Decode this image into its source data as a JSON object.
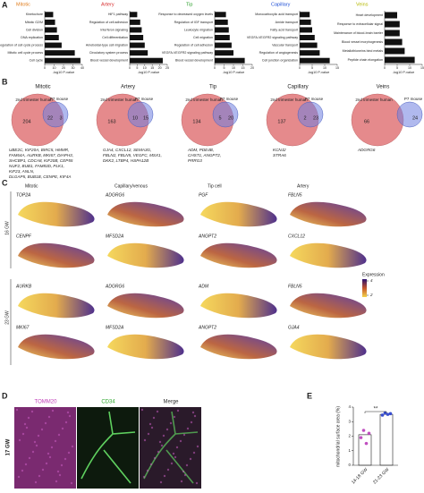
{
  "panel_a": {
    "label": "A",
    "xlabel": "-log10 P-value",
    "charts": [
      {
        "title": "Mitotic",
        "title_color": "#e07b1a",
        "bar_color": "#111111",
        "categories": [
          "Kinetochore",
          "Mitotic G2/M",
          "Cell division",
          "DNA replication",
          "Regulation of cell cycle process",
          "Mitotic cell cycle process",
          "Cell cycle"
        ],
        "values": [
          9,
          11,
          13,
          15,
          18,
          32,
          38
        ],
        "xlim": [
          0,
          40
        ],
        "xticks": [
          0,
          10,
          20,
          30,
          40
        ]
      },
      {
        "title": "Artery",
        "title_color": "#d62728",
        "bar_color": "#111111",
        "categories": [
          "HIF1 pathway",
          "Regulation of cell adhesion",
          "Interferon signaling",
          "Cell differentiation",
          "Ameboidal-type cell migration",
          "Circulatory system process",
          "Blood vessel development"
        ],
        "values": [
          5,
          7,
          8,
          9,
          10,
          12,
          22
        ],
        "xlim": [
          0,
          25
        ],
        "xticks": [
          0,
          5,
          10,
          15,
          20,
          25
        ]
      },
      {
        "title": "Tip",
        "title_color": "#2ca02c",
        "bar_color": "#111111",
        "categories": [
          "Response to decreased oxygen levels",
          "Regulation of IGF transport",
          "Leukocyte migration",
          "Cell migration",
          "Regulation of cell adhesion",
          "VEGFA-VEGFR2 signaling pathway",
          "Blood vessel development"
        ],
        "values": [
          6,
          7,
          7.5,
          8,
          9,
          10,
          16
        ],
        "xlim": [
          0,
          20
        ],
        "xticks": [
          0,
          5,
          10,
          15,
          20
        ]
      },
      {
        "title": "Capillary",
        "title_color": "#1f4fd6",
        "bar_color": "#111111",
        "categories": [
          "Monocarboxylic acid transport",
          "Amide transport",
          "Fatty acid transport",
          "VEGFA-VEGFR2 signaling pathway",
          "Vascular transport",
          "Regulation of angiogenesis",
          "Cell junction organization"
        ],
        "values": [
          4,
          4.5,
          5,
          6,
          7,
          8,
          12
        ],
        "xlim": [
          0,
          15
        ],
        "xticks": [
          0,
          5,
          10,
          15
        ]
      },
      {
        "title": "Veins",
        "title_color": "#b5b800",
        "bar_color": "#111111",
        "categories": [
          "Heart development",
          "Response to extracellular signal",
          "Maintenance of blood-brain barrier",
          "Blood vessel morphogenesis",
          "Metallothioneins bind metals",
          "Peptide chain elongation"
        ],
        "values": [
          5,
          6,
          6,
          7,
          8,
          12
        ],
        "xlim": [
          0,
          15
        ],
        "xticks": [
          0,
          5,
          10,
          15
        ]
      }
    ]
  },
  "panel_b": {
    "label": "B",
    "left_set": "2nd trimester human",
    "right_set": "P7 mouse",
    "venns": [
      {
        "title": "Mitotic",
        "left": 204,
        "overlap": 22,
        "right": 3,
        "genes": [
          "UBE2C, KIF20A, BIRC5, HMMR,",
          "FAM64A, AURKB, MKI67, DIAPH3,",
          "SHCBP1, CDCA8, KIF20B, CEP55",
          "NUF2, BUB1, FAM83D, PLK1,",
          "KIF23, ANLN,",
          "DLGAP5, BUB1B, CENPE, KIF4A"
        ]
      },
      {
        "title": "Artery",
        "left": 163,
        "overlap": 10,
        "right": 15,
        "genes": [
          "GJA4, CXCL12, SEMA3G,",
          "FBLN2, FBLN5, VEGFC, MSX1,",
          "DKK2, LTBP4, HSPA12B"
        ]
      },
      {
        "title": "Tip",
        "left": 134,
        "overlap": 5,
        "right": 20,
        "genes": [
          "ADM, PDE4B,",
          "CHST1, ANGPT2,",
          "PRRG3"
        ]
      },
      {
        "title": "Capillary",
        "left": 137,
        "overlap": 2,
        "right": 23,
        "genes": [
          "KCNJ2",
          "STRA6"
        ]
      },
      {
        "title": "Veins",
        "left": 66,
        "right": 24,
        "genes": [
          "ADGRG6"
        ]
      }
    ]
  },
  "panel_c": {
    "label": "C",
    "columns": [
      "Mitotic",
      "Capillary/venous",
      "Tip cell",
      "Artery"
    ],
    "stages": [
      "16 GW",
      "23 GW"
    ],
    "rows": [
      [
        "TOP2A",
        "ADGRG6",
        "PGF",
        "FBLN5"
      ],
      [
        "CENPF",
        "MFSD2A",
        "ANGPT2",
        "CXCL12"
      ],
      [
        "AURKB",
        "ADGRG6",
        "ADM",
        "FBLN5"
      ],
      [
        "MKI67",
        "MFSD2A",
        "ANGPT2",
        "GJA4"
      ]
    ],
    "legend": {
      "title": "Expression",
      "ticks": [
        4,
        2
      ]
    }
  },
  "panel_d": {
    "label": "D",
    "channels": [
      "TOMM20",
      "CD34",
      "Merge"
    ],
    "stage": "17 GW"
  },
  "panel_e": {
    "label": "E",
    "ylabel": "mitochondrial surface area (%)",
    "categories": [
      "14-18 GW",
      "21-23 GW"
    ],
    "means": [
      2.1,
      3.5
    ],
    "points": [
      [
        1.9,
        2.4,
        1.5,
        2.2
      ],
      [
        3.45,
        3.6,
        3.5,
        3.55
      ]
    ],
    "colors": [
      "#c04fc0",
      "#3a4fd0"
    ],
    "significance": "**",
    "ylim": [
      0,
      4
    ],
    "yticks": [
      0,
      1,
      2,
      3,
      4
    ]
  }
}
